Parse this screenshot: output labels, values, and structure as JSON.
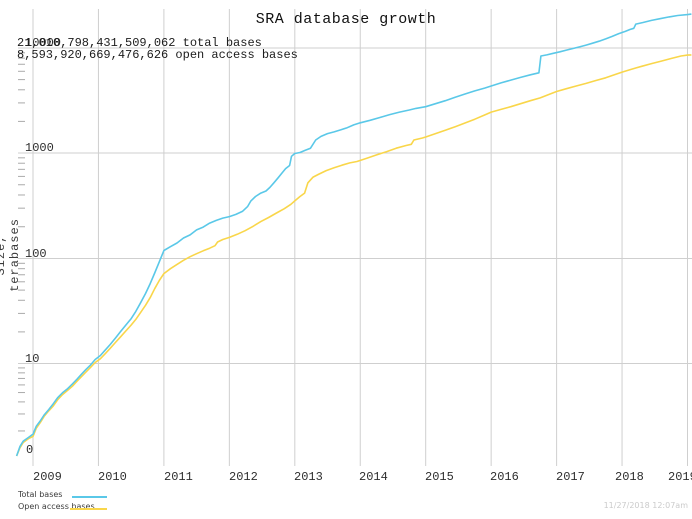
{
  "title": "SRA database growth",
  "annotations": {
    "total_line": "21,010,798,431,509,062 total bases",
    "open_line": "8,593,920,669,476,626 open access bases"
  },
  "y_axis": {
    "label": "Size, terabases",
    "ticks": [
      "10000",
      "1000",
      "100",
      "10",
      "0"
    ]
  },
  "x_axis": {
    "ticks": [
      "2009",
      "2010",
      "2011",
      "2012",
      "2013",
      "2014",
      "2015",
      "2016",
      "2017",
      "2018",
      "2019"
    ]
  },
  "legend": {
    "total": {
      "label": "Total bases",
      "color": "#5ac8e8"
    },
    "open": {
      "label": "Open access bases",
      "color": "#f9d64a"
    }
  },
  "timestamp": "11/27/2018 12:07am",
  "colors": {
    "total_series": "#5ac8e8",
    "open_series": "#f9d64a",
    "gridline": "#cfcfcf",
    "minor_tick": "#aaaaaa",
    "timestamp_text": "#cbcbcb"
  },
  "chart_data": {
    "type": "line",
    "title": "SRA database growth",
    "xlabel": "",
    "ylabel": "Size, terabases",
    "y_scale": "log",
    "y_ticks": [
      0,
      10,
      100,
      1000,
      10000
    ],
    "x_ticks": [
      2009,
      2010,
      2011,
      2012,
      2013,
      2014,
      2015,
      2016,
      2017,
      2018,
      2019
    ],
    "x_range": [
      2008.75,
      2019.08
    ],
    "grid": true,
    "legend_position": "bottom-left",
    "totals": {
      "total_bases": "21,010,798,431,509,062",
      "open_access_bases": "8,593,920,669,476,626"
    },
    "series": [
      {
        "name": "Total bases",
        "color": "#5ac8e8",
        "units": "terabases",
        "points": [
          [
            2008.75,
            1.3
          ],
          [
            2008.8,
            1.6
          ],
          [
            2008.85,
            1.8
          ],
          [
            2008.93,
            1.95
          ],
          [
            2009.0,
            2.1
          ],
          [
            2009.05,
            2.5
          ],
          [
            2009.11,
            2.8
          ],
          [
            2009.17,
            3.2
          ],
          [
            2009.24,
            3.6
          ],
          [
            2009.31,
            4.1
          ],
          [
            2009.38,
            4.7
          ],
          [
            2009.45,
            5.2
          ],
          [
            2009.53,
            5.7
          ],
          [
            2009.6,
            6.3
          ],
          [
            2009.67,
            7.0
          ],
          [
            2009.74,
            7.8
          ],
          [
            2009.81,
            8.7
          ],
          [
            2009.88,
            9.6
          ],
          [
            2009.95,
            10.8
          ],
          [
            2010.03,
            11.8
          ],
          [
            2010.1,
            13.2
          ],
          [
            2010.18,
            15.0
          ],
          [
            2010.26,
            17.3
          ],
          [
            2010.34,
            20.0
          ],
          [
            2010.42,
            23.0
          ],
          [
            2010.5,
            26.5
          ],
          [
            2010.57,
            31.0
          ],
          [
            2010.64,
            37.0
          ],
          [
            2010.72,
            46.0
          ],
          [
            2010.79,
            57.0
          ],
          [
            2010.86,
            72.0
          ],
          [
            2010.93,
            92.0
          ],
          [
            2011.0,
            118
          ],
          [
            2011.1,
            128
          ],
          [
            2011.2,
            139
          ],
          [
            2011.3,
            155
          ],
          [
            2011.4,
            166
          ],
          [
            2011.5,
            185
          ],
          [
            2011.6,
            197
          ],
          [
            2011.7,
            215
          ],
          [
            2011.8,
            228
          ],
          [
            2011.9,
            240
          ],
          [
            2012.0,
            248
          ],
          [
            2012.1,
            260
          ],
          [
            2012.2,
            278
          ],
          [
            2012.28,
            310
          ],
          [
            2012.33,
            350
          ],
          [
            2012.4,
            385
          ],
          [
            2012.48,
            415
          ],
          [
            2012.56,
            435
          ],
          [
            2012.62,
            470
          ],
          [
            2012.68,
            520
          ],
          [
            2012.74,
            575
          ],
          [
            2012.8,
            640
          ],
          [
            2012.86,
            710
          ],
          [
            2012.92,
            760
          ],
          [
            2012.95,
            930
          ],
          [
            2013.0,
            990
          ],
          [
            2013.08,
            1010
          ],
          [
            2013.16,
            1060
          ],
          [
            2013.24,
            1110
          ],
          [
            2013.32,
            1330
          ],
          [
            2013.4,
            1440
          ],
          [
            2013.5,
            1530
          ],
          [
            2013.6,
            1590
          ],
          [
            2013.7,
            1660
          ],
          [
            2013.8,
            1740
          ],
          [
            2013.9,
            1850
          ],
          [
            2014.0,
            1940
          ],
          [
            2014.15,
            2050
          ],
          [
            2014.3,
            2180
          ],
          [
            2014.45,
            2320
          ],
          [
            2014.6,
            2450
          ],
          [
            2014.75,
            2570
          ],
          [
            2014.85,
            2660
          ],
          [
            2015.0,
            2760
          ],
          [
            2015.15,
            2950
          ],
          [
            2015.3,
            3150
          ],
          [
            2015.45,
            3400
          ],
          [
            2015.6,
            3650
          ],
          [
            2015.75,
            3900
          ],
          [
            2015.9,
            4150
          ],
          [
            2016.0,
            4350
          ],
          [
            2016.15,
            4650
          ],
          [
            2016.3,
            4950
          ],
          [
            2016.45,
            5250
          ],
          [
            2016.6,
            5550
          ],
          [
            2016.73,
            5800
          ],
          [
            2016.76,
            8400
          ],
          [
            2016.85,
            8600
          ],
          [
            2016.95,
            8900
          ],
          [
            2017.05,
            9200
          ],
          [
            2017.15,
            9550
          ],
          [
            2017.25,
            9900
          ],
          [
            2017.35,
            10250
          ],
          [
            2017.45,
            10650
          ],
          [
            2017.55,
            11100
          ],
          [
            2017.65,
            11600
          ],
          [
            2017.75,
            12200
          ],
          [
            2017.85,
            12900
          ],
          [
            2017.95,
            13700
          ],
          [
            2018.05,
            14400
          ],
          [
            2018.12,
            15000
          ],
          [
            2018.18,
            15400
          ],
          [
            2018.21,
            16900
          ],
          [
            2018.32,
            17500
          ],
          [
            2018.45,
            18300
          ],
          [
            2018.58,
            19000
          ],
          [
            2018.72,
            19800
          ],
          [
            2018.85,
            20400
          ],
          [
            2019.0,
            20800
          ],
          [
            2019.06,
            21010
          ]
        ]
      },
      {
        "name": "Open access bases",
        "color": "#f9d64a",
        "units": "terabases",
        "points": [
          [
            2008.75,
            1.3
          ],
          [
            2008.8,
            1.55
          ],
          [
            2008.85,
            1.75
          ],
          [
            2008.93,
            1.9
          ],
          [
            2009.0,
            2.0
          ],
          [
            2009.05,
            2.4
          ],
          [
            2009.11,
            2.7
          ],
          [
            2009.17,
            3.1
          ],
          [
            2009.24,
            3.5
          ],
          [
            2009.31,
            3.9
          ],
          [
            2009.38,
            4.5
          ],
          [
            2009.45,
            5.0
          ],
          [
            2009.53,
            5.5
          ],
          [
            2009.6,
            6.0
          ],
          [
            2009.67,
            6.7
          ],
          [
            2009.74,
            7.4
          ],
          [
            2009.81,
            8.2
          ],
          [
            2009.88,
            9.1
          ],
          [
            2009.95,
            10.1
          ],
          [
            2010.03,
            11.0
          ],
          [
            2010.1,
            12.2
          ],
          [
            2010.18,
            13.8
          ],
          [
            2010.26,
            15.7
          ],
          [
            2010.34,
            17.8
          ],
          [
            2010.42,
            20.2
          ],
          [
            2010.5,
            23.0
          ],
          [
            2010.57,
            26.0
          ],
          [
            2010.64,
            30.0
          ],
          [
            2010.72,
            35.5
          ],
          [
            2010.79,
            42.0
          ],
          [
            2010.86,
            51.0
          ],
          [
            2010.93,
            61.0
          ],
          [
            2011.0,
            71.0
          ],
          [
            2011.1,
            79.0
          ],
          [
            2011.2,
            87.0
          ],
          [
            2011.3,
            95.0
          ],
          [
            2011.4,
            103
          ],
          [
            2011.5,
            110
          ],
          [
            2011.6,
            117
          ],
          [
            2011.7,
            124
          ],
          [
            2011.78,
            131
          ],
          [
            2011.82,
            142
          ],
          [
            2011.9,
            150
          ],
          [
            2012.0,
            157
          ],
          [
            2012.12,
            168
          ],
          [
            2012.24,
            182
          ],
          [
            2012.36,
            200
          ],
          [
            2012.48,
            222
          ],
          [
            2012.6,
            243
          ],
          [
            2012.72,
            268
          ],
          [
            2012.84,
            295
          ],
          [
            2012.94,
            325
          ],
          [
            2013.0,
            350
          ],
          [
            2013.08,
            385
          ],
          [
            2013.15,
            415
          ],
          [
            2013.2,
            520
          ],
          [
            2013.28,
            590
          ],
          [
            2013.36,
            625
          ],
          [
            2013.48,
            680
          ],
          [
            2013.6,
            725
          ],
          [
            2013.72,
            765
          ],
          [
            2013.84,
            805
          ],
          [
            2013.95,
            830
          ],
          [
            2014.1,
            890
          ],
          [
            2014.25,
            960
          ],
          [
            2014.4,
            1030
          ],
          [
            2014.55,
            1110
          ],
          [
            2014.7,
            1180
          ],
          [
            2014.78,
            1210
          ],
          [
            2014.82,
            1330
          ],
          [
            2014.95,
            1390
          ],
          [
            2015.0,
            1420
          ],
          [
            2015.15,
            1530
          ],
          [
            2015.3,
            1650
          ],
          [
            2015.45,
            1780
          ],
          [
            2015.6,
            1930
          ],
          [
            2015.75,
            2100
          ],
          [
            2015.9,
            2300
          ],
          [
            2016.0,
            2450
          ],
          [
            2016.15,
            2600
          ],
          [
            2016.3,
            2760
          ],
          [
            2016.45,
            2950
          ],
          [
            2016.6,
            3150
          ],
          [
            2016.75,
            3350
          ],
          [
            2016.9,
            3650
          ],
          [
            2017.0,
            3850
          ],
          [
            2017.15,
            4100
          ],
          [
            2017.3,
            4350
          ],
          [
            2017.45,
            4600
          ],
          [
            2017.6,
            4900
          ],
          [
            2017.75,
            5200
          ],
          [
            2017.9,
            5600
          ],
          [
            2018.0,
            5900
          ],
          [
            2018.15,
            6300
          ],
          [
            2018.3,
            6700
          ],
          [
            2018.45,
            7100
          ],
          [
            2018.6,
            7500
          ],
          [
            2018.75,
            7950
          ],
          [
            2018.9,
            8400
          ],
          [
            2019.0,
            8550
          ],
          [
            2019.06,
            8594
          ]
        ]
      }
    ]
  }
}
